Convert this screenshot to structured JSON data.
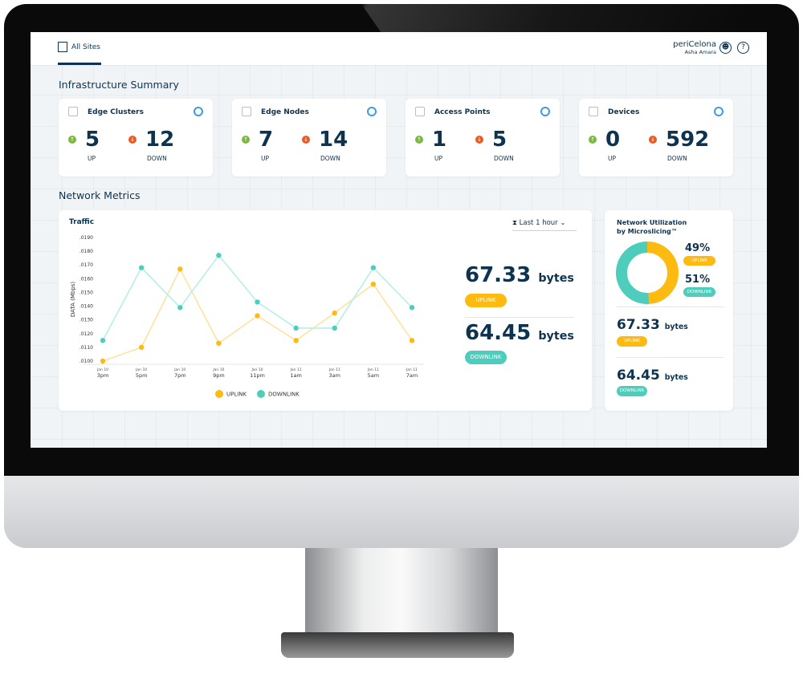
{
  "header": {
    "tab": "All Sites",
    "brand": "periCelona",
    "user": "Asha Amara"
  },
  "infra": {
    "title": "Infrastructure Summary",
    "up_label": "UP",
    "down_label": "DOWN",
    "cards": [
      {
        "title": "Edge Clusters",
        "up": "5",
        "down": "12"
      },
      {
        "title": "Edge Nodes",
        "up": "7",
        "down": "14"
      },
      {
        "title": "Access Points",
        "up": "1",
        "down": "5"
      },
      {
        "title": "Devices",
        "up": "0",
        "down": "592"
      }
    ]
  },
  "metrics": {
    "title": "Network Metrics",
    "range": "Last 1 hour",
    "uplink_value": "67.33",
    "downlink_value": "64.45",
    "unit": "bytes",
    "uplink_label": "UPLINK",
    "downlink_label": "DOWNLINK"
  },
  "util": {
    "title": "Network Utilization by Microslicing™",
    "uplink_pct": "49%",
    "downlink_pct": "51%",
    "uplink_label": "UPLINK",
    "downlink_label": "DOWNLINK",
    "uplink_share": 49,
    "downlink_share": 51,
    "uplink_value": "67.33",
    "downlink_value": "64.45",
    "unit": "bytes"
  },
  "colors": {
    "uplink": "#fdbb11",
    "downlink": "#4ecdbd",
    "navy": "#0d3350",
    "up": "#79b940",
    "down": "#ea5a25"
  },
  "chart_data": {
    "type": "line",
    "title": "Traffic",
    "ylabel": "DATA (Mbps)",
    "ylim": [
      0.01,
      0.019
    ],
    "yticks": [
      ".0100",
      ".0110",
      ".0120",
      ".0130",
      ".0140",
      ".0150",
      ".0160",
      ".0170",
      ".0180",
      ".0190"
    ],
    "categories": [
      "Jan 10 3pm",
      "Jan 10 5pm",
      "Jan 10 7pm",
      "Jan 10 9pm",
      "Jan 10 11pm",
      "Jan 11 1am",
      "Jan 11 3am",
      "Jan 11 5am",
      "Jan 11 7am"
    ],
    "xdates": [
      "Jan 10",
      "Jan 10",
      "Jan 10",
      "Jan 10",
      "Jan 10",
      "Jan 11",
      "Jan 11",
      "Jan 11",
      "Jan 11"
    ],
    "xtimes": [
      "3pm",
      "5pm",
      "7pm",
      "9pm",
      "11pm",
      "1am",
      "3am",
      "5am",
      "7am"
    ],
    "series": [
      {
        "name": "UPLINK",
        "color": "#fdbb11",
        "values": [
          0.01,
          0.011,
          0.0167,
          0.0113,
          0.0133,
          0.0115,
          0.0135,
          0.0156,
          0.0115
        ]
      },
      {
        "name": "DOWNLINK",
        "color": "#4ecdbd",
        "values": [
          0.0115,
          0.0168,
          0.0139,
          0.0177,
          0.0143,
          0.0124,
          0.0124,
          0.0168,
          0.0139
        ]
      }
    ],
    "legend": "bottom",
    "grid": false
  }
}
